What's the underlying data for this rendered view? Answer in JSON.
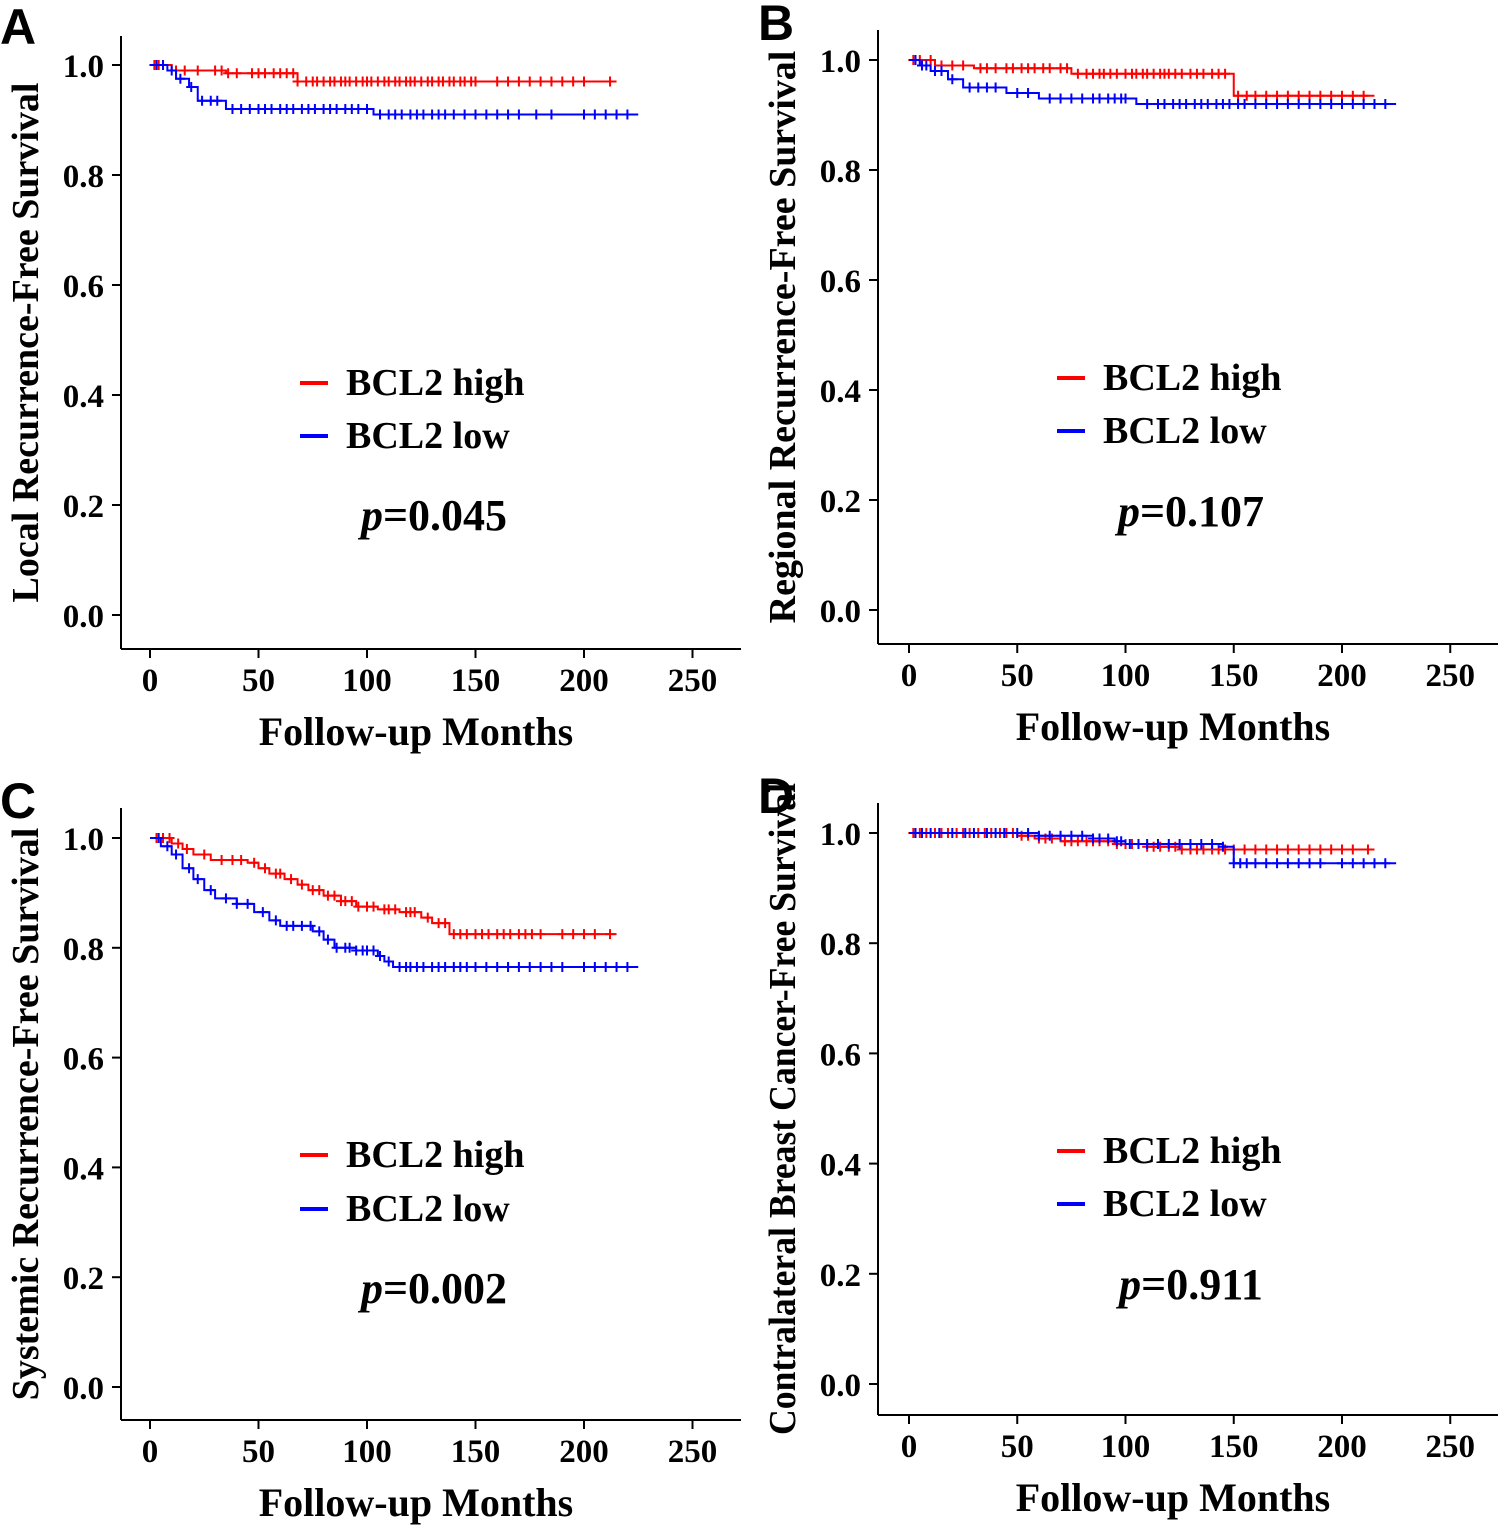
{
  "chart_data": [
    {
      "type": "line",
      "panel_label": "A",
      "xlabel": "Follow-up Months",
      "ylabel": "Local Recurrence-Free Survival",
      "xlim": [
        0,
        250
      ],
      "ylim": [
        0,
        1
      ],
      "x_ticks": [
        "0",
        "50",
        "100",
        "150",
        "200",
        "250"
      ],
      "y_ticks": [
        "0.0",
        "0.2",
        "0.4",
        "0.6",
        "0.8",
        "1.0"
      ],
      "grid": false,
      "legend_position": "center",
      "annotation": {
        "prefix": "p",
        "value": "=0.045"
      },
      "series": [
        {
          "name": "BCL2 high",
          "color": "#ff0000",
          "steps": [
            [
              0,
              1.0
            ],
            [
              10,
              0.99
            ],
            [
              35,
              0.985
            ],
            [
              68,
              0.97
            ],
            [
              215,
              0.97
            ]
          ],
          "censored": [
            2,
            4,
            6,
            12,
            16,
            22,
            30,
            33,
            36,
            40,
            47,
            50,
            53,
            57,
            60,
            63,
            66,
            68,
            72,
            75,
            77,
            80,
            83,
            85,
            88,
            90,
            92,
            95,
            98,
            100,
            102,
            105,
            108,
            110,
            113,
            115,
            118,
            120,
            122,
            125,
            128,
            130,
            133,
            135,
            138,
            140,
            143,
            145,
            148,
            150,
            160,
            165,
            170,
            175,
            180,
            185,
            190,
            195,
            200,
            212
          ]
        },
        {
          "name": "BCL2 low",
          "color": "#0000ff",
          "steps": [
            [
              0,
              1.0
            ],
            [
              8,
              0.99
            ],
            [
              12,
              0.975
            ],
            [
              18,
              0.96
            ],
            [
              22,
              0.935
            ],
            [
              35,
              0.92
            ],
            [
              103,
              0.91
            ],
            [
              225,
              0.91
            ]
          ],
          "censored": [
            3,
            6,
            10,
            14,
            19,
            24,
            28,
            31,
            38,
            42,
            46,
            50,
            53,
            56,
            60,
            63,
            66,
            70,
            73,
            76,
            80,
            83,
            86,
            90,
            93,
            96,
            100,
            106,
            110,
            113,
            116,
            120,
            123,
            126,
            130,
            133,
            136,
            140,
            145,
            150,
            155,
            160,
            165,
            170,
            178,
            185,
            200,
            205,
            210,
            215,
            220
          ]
        }
      ]
    },
    {
      "type": "line",
      "panel_label": "B",
      "xlabel": "Follow-up Months",
      "ylabel": "Regional Recurrence-Free Survival",
      "xlim": [
        0,
        250
      ],
      "ylim": [
        0,
        1
      ],
      "x_ticks": [
        "0",
        "50",
        "100",
        "150",
        "200",
        "250"
      ],
      "y_ticks": [
        "0.0",
        "0.2",
        "0.4",
        "0.6",
        "0.8",
        "1.0"
      ],
      "grid": false,
      "legend_position": "center",
      "annotation": {
        "prefix": "p",
        "value": "=0.107"
      },
      "series": [
        {
          "name": "BCL2 high",
          "color": "#ff0000",
          "steps": [
            [
              0,
              1.0
            ],
            [
              12,
              0.99
            ],
            [
              30,
              0.985
            ],
            [
              75,
              0.975
            ],
            [
              150,
              0.935
            ],
            [
              215,
              0.935
            ]
          ],
          "censored": [
            2,
            5,
            10,
            15,
            20,
            25,
            33,
            36,
            40,
            45,
            48,
            52,
            55,
            58,
            62,
            65,
            70,
            73,
            78,
            82,
            85,
            88,
            90,
            93,
            96,
            100,
            103,
            105,
            108,
            110,
            113,
            116,
            118,
            120,
            123,
            126,
            130,
            133,
            136,
            140,
            143,
            146,
            152,
            156,
            160,
            165,
            170,
            175,
            180,
            185,
            190,
            195,
            200,
            205,
            210
          ]
        },
        {
          "name": "BCL2 low",
          "color": "#0000ff",
          "steps": [
            [
              0,
              1.0
            ],
            [
              5,
              0.99
            ],
            [
              10,
              0.98
            ],
            [
              18,
              0.965
            ],
            [
              25,
              0.95
            ],
            [
              45,
              0.94
            ],
            [
              60,
              0.93
            ],
            [
              105,
              0.92
            ],
            [
              225,
              0.92
            ]
          ],
          "censored": [
            3,
            6,
            8,
            12,
            15,
            20,
            28,
            32,
            36,
            40,
            50,
            55,
            65,
            70,
            75,
            80,
            85,
            88,
            92,
            95,
            98,
            100,
            110,
            115,
            118,
            122,
            125,
            128,
            132,
            135,
            138,
            142,
            145,
            148,
            152,
            155,
            160,
            165,
            170,
            175,
            180,
            185,
            190,
            195,
            200,
            205,
            210,
            215,
            220
          ]
        }
      ]
    },
    {
      "type": "line",
      "panel_label": "C",
      "xlabel": "Follow-up Months",
      "ylabel": "Systemic Recurrence-Free Survival",
      "xlim": [
        0,
        250
      ],
      "ylim": [
        0,
        1
      ],
      "x_ticks": [
        "0",
        "50",
        "100",
        "150",
        "200",
        "250"
      ],
      "y_ticks": [
        "0.0",
        "0.2",
        "0.4",
        "0.6",
        "0.8",
        "1.0"
      ],
      "grid": false,
      "legend_position": "center",
      "annotation": {
        "prefix": "p",
        "value": "=0.002"
      },
      "series": [
        {
          "name": "BCL2 high",
          "color": "#ff0000",
          "steps": [
            [
              0,
              1.0
            ],
            [
              10,
              0.99
            ],
            [
              15,
              0.98
            ],
            [
              20,
              0.97
            ],
            [
              28,
              0.96
            ],
            [
              45,
              0.955
            ],
            [
              50,
              0.945
            ],
            [
              55,
              0.935
            ],
            [
              62,
              0.925
            ],
            [
              68,
              0.915
            ],
            [
              73,
              0.905
            ],
            [
              80,
              0.895
            ],
            [
              88,
              0.885
            ],
            [
              95,
              0.875
            ],
            [
              105,
              0.87
            ],
            [
              115,
              0.865
            ],
            [
              125,
              0.855
            ],
            [
              130,
              0.845
            ],
            [
              138,
              0.825
            ],
            [
              215,
              0.825
            ]
          ],
          "censored": [
            3,
            6,
            9,
            13,
            17,
            25,
            33,
            38,
            42,
            48,
            53,
            58,
            60,
            65,
            70,
            75,
            78,
            82,
            85,
            88,
            90,
            93,
            96,
            100,
            103,
            108,
            110,
            113,
            118,
            120,
            122,
            128,
            133,
            136,
            140,
            143,
            146,
            150,
            153,
            156,
            160,
            163,
            166,
            170,
            173,
            176,
            180,
            190,
            195,
            200,
            205,
            212
          ]
        },
        {
          "name": "BCL2 low",
          "color": "#0000ff",
          "steps": [
            [
              0,
              1.0
            ],
            [
              5,
              0.985
            ],
            [
              10,
              0.97
            ],
            [
              15,
              0.945
            ],
            [
              20,
              0.925
            ],
            [
              25,
              0.905
            ],
            [
              30,
              0.89
            ],
            [
              40,
              0.88
            ],
            [
              48,
              0.865
            ],
            [
              55,
              0.85
            ],
            [
              60,
              0.84
            ],
            [
              75,
              0.83
            ],
            [
              80,
              0.815
            ],
            [
              85,
              0.8
            ],
            [
              95,
              0.795
            ],
            [
              105,
              0.785
            ],
            [
              108,
              0.775
            ],
            [
              112,
              0.765
            ],
            [
              225,
              0.765
            ]
          ],
          "censored": [
            4,
            8,
            12,
            18,
            22,
            28,
            35,
            40,
            45,
            52,
            58,
            63,
            66,
            70,
            74,
            78,
            82,
            86,
            90,
            92,
            95,
            98,
            100,
            103,
            106,
            110,
            115,
            118,
            120,
            123,
            126,
            130,
            133,
            136,
            140,
            143,
            146,
            150,
            155,
            160,
            165,
            170,
            175,
            180,
            185,
            190,
            200,
            205,
            210,
            215,
            220
          ]
        }
      ]
    },
    {
      "type": "line",
      "panel_label": "D",
      "xlabel": "Follow-up Months",
      "ylabel": "Contralateral Breast Cancer-Free Survival",
      "xlim": [
        0,
        250
      ],
      "ylim": [
        0,
        1
      ],
      "x_ticks": [
        "0",
        "50",
        "100",
        "150",
        "200",
        "250"
      ],
      "y_ticks": [
        "0.0",
        "0.2",
        "0.4",
        "0.6",
        "0.8",
        "1.0"
      ],
      "grid": false,
      "legend_position": "center",
      "annotation": {
        "prefix": "p",
        "value": "=0.911"
      },
      "series": [
        {
          "name": "BCL2 high",
          "color": "#ff0000",
          "steps": [
            [
              0,
              1.0
            ],
            [
              50,
              0.995
            ],
            [
              58,
              0.99
            ],
            [
              70,
              0.985
            ],
            [
              95,
              0.98
            ],
            [
              110,
              0.975
            ],
            [
              125,
              0.97
            ],
            [
              215,
              0.97
            ]
          ],
          "censored": [
            2,
            5,
            8,
            12,
            15,
            18,
            22,
            25,
            28,
            32,
            35,
            38,
            42,
            45,
            48,
            52,
            55,
            60,
            63,
            66,
            72,
            75,
            78,
            82,
            85,
            88,
            92,
            96,
            100,
            103,
            106,
            110,
            113,
            116,
            120,
            123,
            126,
            130,
            133,
            136,
            140,
            143,
            146,
            150,
            155,
            160,
            165,
            170,
            175,
            180,
            185,
            190,
            195,
            200,
            205,
            212
          ]
        },
        {
          "name": "BCL2 low",
          "color": "#0000ff",
          "steps": [
            [
              0,
              1.0
            ],
            [
              60,
              0.995
            ],
            [
              85,
              0.99
            ],
            [
              95,
              0.985
            ],
            [
              100,
              0.98
            ],
            [
              145,
              0.975
            ],
            [
              150,
              0.945
            ],
            [
              225,
              0.945
            ]
          ],
          "censored": [
            3,
            6,
            10,
            14,
            20,
            26,
            30,
            36,
            40,
            44,
            50,
            55,
            60,
            65,
            70,
            75,
            80,
            85,
            88,
            92,
            96,
            98,
            102,
            106,
            110,
            115,
            120,
            125,
            130,
            135,
            140,
            145,
            150,
            153,
            156,
            160,
            165,
            170,
            175,
            180,
            185,
            190,
            200,
            205,
            210,
            215,
            220
          ]
        }
      ]
    }
  ]
}
